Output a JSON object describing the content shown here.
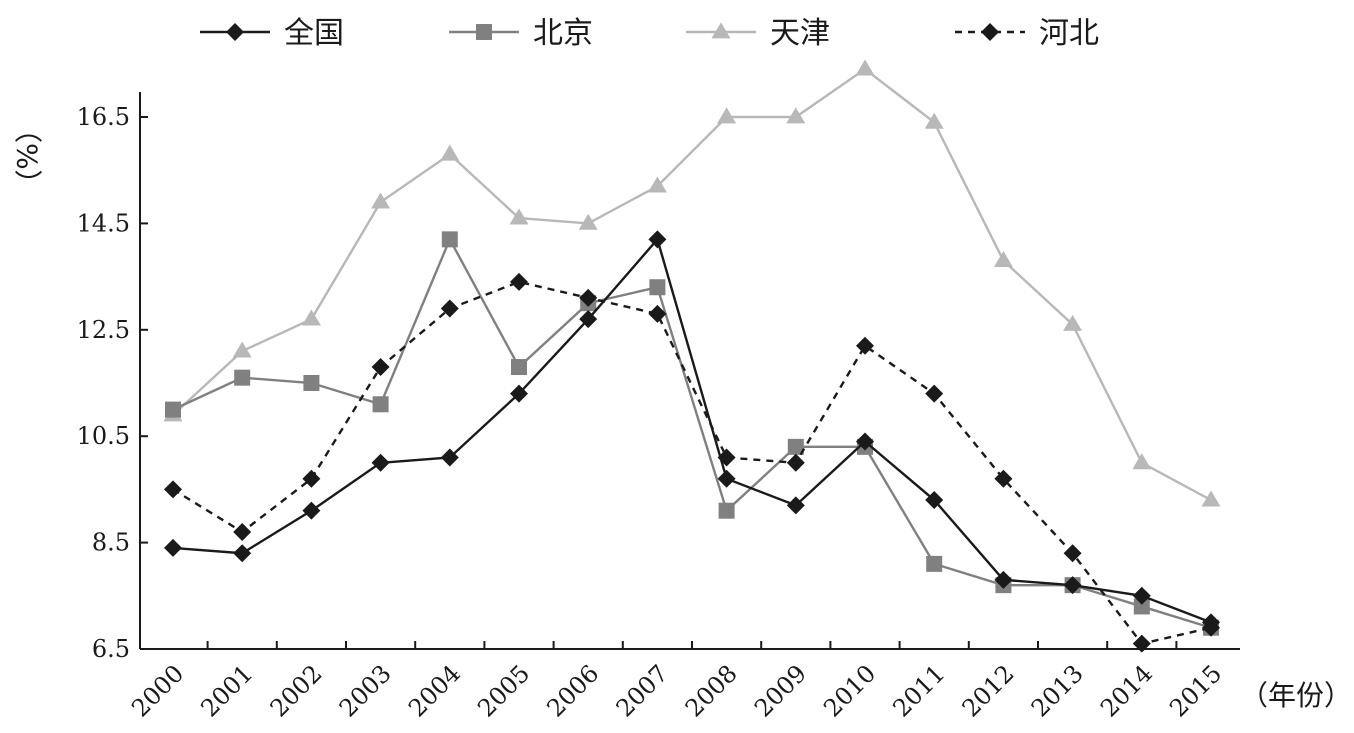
{
  "chart_data": {
    "type": "line",
    "x": [
      "2000",
      "2001",
      "2002",
      "2003",
      "2004",
      "2005",
      "2006",
      "2007",
      "2008",
      "2009",
      "2010",
      "2011",
      "2012",
      "2013",
      "2014",
      "2015"
    ],
    "ylim": [
      6.5,
      17.5
    ],
    "yticks": [
      "6.5",
      "8.5",
      "10.5",
      "12.5",
      "14.5",
      "16.5"
    ],
    "ylabel": "（%）",
    "xlabel": "（年份）",
    "grid": false,
    "legend_position": "top",
    "series": [
      {
        "name": "全国",
        "color": "#1a1a1a",
        "line_style": "solid",
        "marker": "diamond",
        "values": [
          8.4,
          8.3,
          9.1,
          10.0,
          10.1,
          11.3,
          12.7,
          14.2,
          9.7,
          9.2,
          10.4,
          9.3,
          7.8,
          7.7,
          7.5,
          7.0
        ]
      },
      {
        "name": "北京",
        "color": "#808080",
        "line_style": "solid",
        "marker": "square",
        "values": [
          11.0,
          11.6,
          11.5,
          11.1,
          14.2,
          11.8,
          13.0,
          13.3,
          9.1,
          10.3,
          10.3,
          8.1,
          7.7,
          7.7,
          7.3,
          6.9
        ]
      },
      {
        "name": "天津",
        "color": "#b8b8b8",
        "line_style": "solid",
        "marker": "triangle",
        "values": [
          10.9,
          12.1,
          12.7,
          14.9,
          15.8,
          14.6,
          14.5,
          15.2,
          16.5,
          16.5,
          17.4,
          16.4,
          13.8,
          12.6,
          10.0,
          9.3
        ]
      },
      {
        "name": "河北",
        "color": "#1a1a1a",
        "line_style": "dashed",
        "marker": "diamond",
        "values": [
          9.5,
          8.7,
          9.7,
          11.8,
          12.9,
          13.4,
          13.1,
          12.8,
          10.1,
          10.0,
          12.2,
          11.3,
          9.7,
          8.3,
          6.6,
          6.9
        ]
      }
    ]
  }
}
